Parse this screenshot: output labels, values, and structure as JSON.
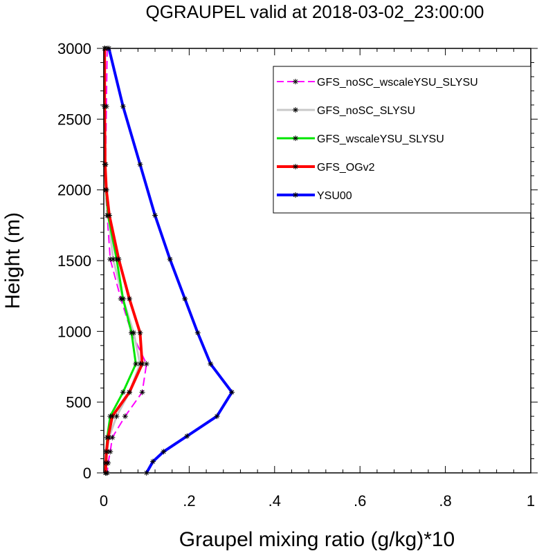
{
  "chart_data": {
    "type": "line",
    "title": "QGRAUPEL valid at 2018-03-02_23:00:00",
    "xlabel": "Graupel mixing ratio (g/kg)*10",
    "ylabel": "Height (m)",
    "xlim": [
      0,
      1
    ],
    "ylim": [
      0,
      3000
    ],
    "xticks": [
      {
        "value": 0,
        "label": "0"
      },
      {
        "value": 0.2,
        "label": ".2"
      },
      {
        "value": 0.4,
        "label": ".4"
      },
      {
        "value": 0.6,
        "label": ".6"
      },
      {
        "value": 0.8,
        "label": ".8"
      },
      {
        "value": 1,
        "label": "1"
      }
    ],
    "yticks": [
      {
        "value": 0,
        "label": "0"
      },
      {
        "value": 500,
        "label": "500"
      },
      {
        "value": 1000,
        "label": "1000"
      },
      {
        "value": 1500,
        "label": "1500"
      },
      {
        "value": 2000,
        "label": "2000"
      },
      {
        "value": 2500,
        "label": "2500"
      },
      {
        "value": 3000,
        "label": "3000"
      }
    ],
    "grid": false,
    "legend_position": "top-right",
    "series": [
      {
        "name": "GFS_noSC_wscaleYSU_SLYSU",
        "color": "#ff00ff",
        "dashed": true,
        "width": 2,
        "points": [
          [
            0.008,
            3000
          ],
          [
            0.006,
            2590
          ],
          [
            0.004,
            2180
          ],
          [
            0.004,
            2000
          ],
          [
            0.008,
            1820
          ],
          [
            0.015,
            1510
          ],
          [
            0.04,
            1230
          ],
          [
            0.065,
            990
          ],
          [
            0.1,
            770
          ],
          [
            0.09,
            570
          ],
          [
            0.05,
            400
          ],
          [
            0.02,
            250
          ],
          [
            0.015,
            150
          ],
          [
            0.01,
            70
          ],
          [
            0.008,
            0
          ]
        ]
      },
      {
        "name": "GFS_noSC_SLYSU",
        "color": "#c8c8c8",
        "dashed": false,
        "width": 3,
        "points": [
          [
            0.002,
            3000
          ],
          [
            0.002,
            2590
          ],
          [
            0.003,
            2180
          ],
          [
            0.005,
            2000
          ],
          [
            0.01,
            1820
          ],
          [
            0.022,
            1510
          ],
          [
            0.045,
            1230
          ],
          [
            0.07,
            990
          ],
          [
            0.085,
            770
          ],
          [
            0.06,
            570
          ],
          [
            0.03,
            400
          ],
          [
            0.012,
            250
          ],
          [
            0.008,
            150
          ],
          [
            0.006,
            70
          ],
          [
            0.005,
            0
          ]
        ]
      },
      {
        "name": "GFS_wscaleYSU_SLYSU",
        "color": "#00e600",
        "dashed": false,
        "width": 3,
        "points": [
          [
            0.002,
            3000
          ],
          [
            0.002,
            2590
          ],
          [
            0.003,
            2180
          ],
          [
            0.005,
            2000
          ],
          [
            0.01,
            1820
          ],
          [
            0.03,
            1510
          ],
          [
            0.045,
            1230
          ],
          [
            0.065,
            990
          ],
          [
            0.075,
            770
          ],
          [
            0.045,
            570
          ],
          [
            0.015,
            400
          ],
          [
            0.008,
            250
          ],
          [
            0.006,
            150
          ],
          [
            0.005,
            70
          ],
          [
            0.004,
            0
          ]
        ]
      },
      {
        "name": "GFS_OGv2",
        "color": "#ff0000",
        "dashed": false,
        "width": 4,
        "points": [
          [
            0.002,
            3000
          ],
          [
            0.002,
            2590
          ],
          [
            0.003,
            2180
          ],
          [
            0.006,
            2000
          ],
          [
            0.013,
            1820
          ],
          [
            0.035,
            1510
          ],
          [
            0.06,
            1230
          ],
          [
            0.085,
            990
          ],
          [
            0.09,
            770
          ],
          [
            0.06,
            570
          ],
          [
            0.02,
            400
          ],
          [
            0.01,
            250
          ],
          [
            0.006,
            150
          ],
          [
            0.005,
            70
          ],
          [
            0.004,
            0
          ]
        ]
      },
      {
        "name": "YSU00",
        "color": "#0000ff",
        "dashed": false,
        "width": 4,
        "points": [
          [
            0.012,
            3000
          ],
          [
            0.045,
            2590
          ],
          [
            0.085,
            2180
          ],
          [
            0.12,
            1820
          ],
          [
            0.155,
            1510
          ],
          [
            0.19,
            1230
          ],
          [
            0.22,
            990
          ],
          [
            0.25,
            770
          ],
          [
            0.3,
            570
          ],
          [
            0.265,
            400
          ],
          [
            0.195,
            260
          ],
          [
            0.14,
            150
          ],
          [
            0.115,
            80
          ],
          [
            0.1,
            0
          ]
        ]
      }
    ]
  }
}
